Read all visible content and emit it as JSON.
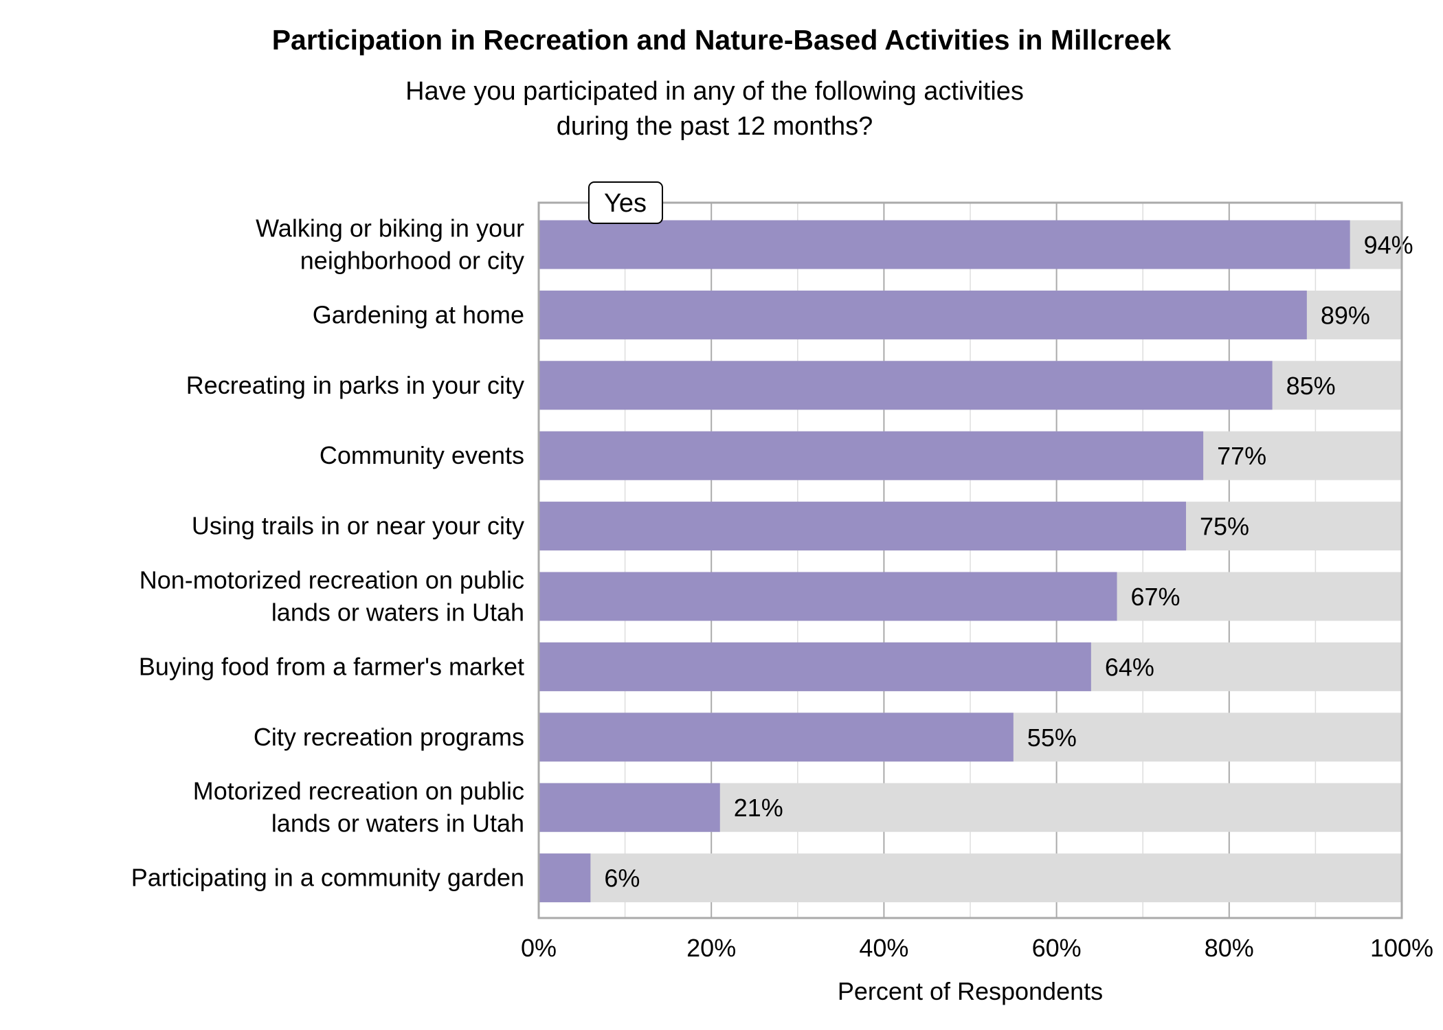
{
  "chart_data": {
    "type": "bar",
    "orientation": "horizontal",
    "stacked_background": true,
    "title": "Participation in Recreation and Nature-Based Activities in Millcreek",
    "subtitle": [
      "Have you participated in any of the following activities",
      "during the past 12 months?"
    ],
    "xlabel": "Percent of Respondents",
    "ylabel": "",
    "xlim": [
      0,
      100
    ],
    "x_ticks": [
      "0%",
      "20%",
      "40%",
      "60%",
      "80%",
      "100%"
    ],
    "grid": true,
    "legend": {
      "label": "Yes",
      "placement": "top-left"
    },
    "categories": [
      [
        "Walking or biking in your",
        "neighborhood or city"
      ],
      [
        "Gardening at home"
      ],
      [
        "Recreating in parks in your city"
      ],
      [
        "Community events"
      ],
      [
        "Using trails in or near your city"
      ],
      [
        "Non-motorized recreation on public",
        "lands or waters in Utah"
      ],
      [
        "Buying food from a farmer's market"
      ],
      [
        "City recreation programs"
      ],
      [
        "Motorized recreation on public",
        "lands or waters in Utah"
      ],
      [
        "Participating in a community garden"
      ]
    ],
    "series": [
      {
        "name": "Yes",
        "values": [
          94,
          89,
          85,
          77,
          75,
          67,
          64,
          55,
          21,
          6
        ]
      }
    ],
    "data_labels": [
      "94%",
      "89%",
      "85%",
      "77%",
      "75%",
      "67%",
      "64%",
      "55%",
      "21%",
      "6%"
    ],
    "colors": {
      "yes": "#988fc3",
      "remainder": "#dcdcdc",
      "grid_major": "#aaaaaa",
      "grid_minor": "#dddddd",
      "frame": "#aaaaaa"
    }
  }
}
